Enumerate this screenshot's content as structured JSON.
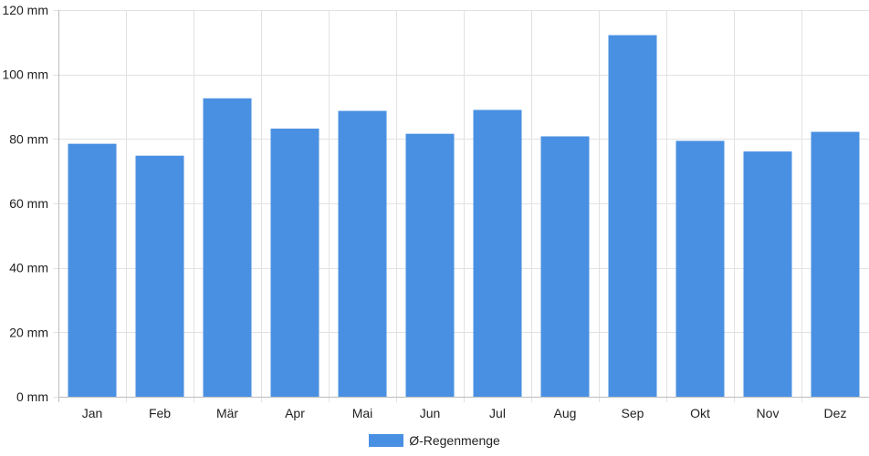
{
  "chart_data": {
    "type": "bar",
    "categories": [
      "Jan",
      "Feb",
      "Mär",
      "Apr",
      "Mai",
      "Jun",
      "Jul",
      "Aug",
      "Sep",
      "Okt",
      "Nov",
      "Dez"
    ],
    "series": [
      {
        "name": "Ø-Regenmenge",
        "values": [
          78.5,
          74.8,
          92.6,
          83.2,
          88.7,
          81.6,
          89.0,
          80.8,
          112.2,
          79.4,
          76.1,
          82.2
        ]
      }
    ],
    "ylim": [
      0,
      120
    ],
    "yticks": [
      0,
      20,
      40,
      60,
      80,
      100,
      120
    ],
    "y_tick_suffix": " mm",
    "grid": true,
    "legend_position": "bottom",
    "colors": {
      "bar": "#4a90e2",
      "grid": "#e2e2e2",
      "axis": "#bdbdbd"
    }
  }
}
